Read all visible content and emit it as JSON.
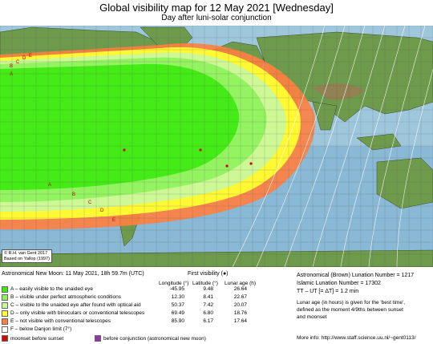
{
  "title": "Global visibility map for 12 May 2021 [Wednesday]",
  "subtitle": "Day after luni-solar conjunction",
  "credit": [
    "© R.H. van Gent 2017",
    "Based on Yallop (1997)"
  ],
  "new_moon": "Astronomical New Moon: 11 May 2021, 18h 59.7m (UTC)",
  "first_visibility": "First visibility (●)",
  "table_headers": [
    "Longitude (°)",
    "Latitude (°)",
    "Lunar age (h)"
  ],
  "legend": [
    {
      "label": "A – easily visible to the unaided eye",
      "color": "#3dea10",
      "lon": "-45.95",
      "lat": "9.48",
      "age": "26.64"
    },
    {
      "label": "B – visible under perfect atmospheric conditions",
      "color": "#8df25a",
      "lon": "12.30",
      "lat": "8.41",
      "age": "22.67"
    },
    {
      "label": "C – visible to the unaided eye after found with optical aid",
      "color": "#c8f7a0",
      "lon": "50.37",
      "lat": "7.42",
      "age": "20.07"
    },
    {
      "label": "D – only visible with binoculars or conventional telescopes",
      "color": "#ffff33",
      "lon": "69.49",
      "lat": "6.80",
      "age": "18.76"
    },
    {
      "label": "E – not visible with conventional telescopes",
      "color": "#ff7f40",
      "lon": "85.90",
      "lat": "6.17",
      "age": "17.64"
    },
    {
      "label": "F – below Danjon limit (7°)",
      "color": "#ffffff",
      "lon": "",
      "lat": "",
      "age": ""
    }
  ],
  "bottom_legend": [
    {
      "label": "moonset before sunset",
      "color": "#dd0000"
    },
    {
      "label": "before conjunction (astronomical new moon)",
      "color": "#9933aa"
    }
  ],
  "right_info": [
    "Astronomical (Brown) Lunation Number = 1217",
    "Islamic Lunation Number = 17302",
    "TT – UT [= ΔT] = 1.2 min"
  ],
  "lunar_age_note": [
    "Lunar age (in hours) is given for the 'best time',",
    "defined as the moment 4/9ths between sunset",
    "and moonset"
  ],
  "more_info": "More info: http://www.staff.science.uu.nl/~gent0113/",
  "map_labels": [
    "A",
    "B",
    "C",
    "D",
    "E",
    "A",
    "B",
    "C",
    "D",
    "E"
  ]
}
